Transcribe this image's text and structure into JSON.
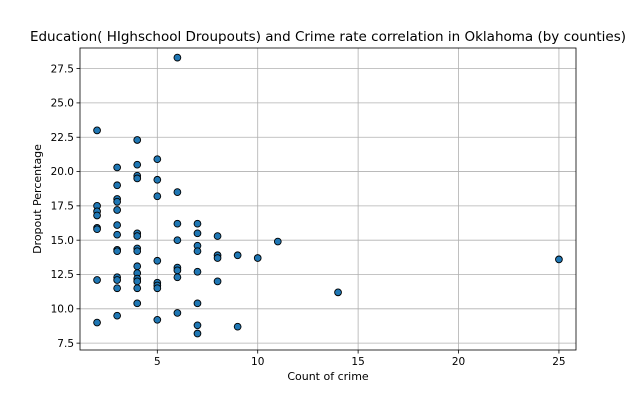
{
  "chart_data": {
    "type": "scatter",
    "title": "Education( HIghschool Droupouts) and Crime rate correlation in Oklahoma (by counties)",
    "xlabel": "Count of crime",
    "ylabel": "Dropout Percentage",
    "xlim": [
      1.15,
      25.85
    ],
    "ylim": [
      7.0,
      29.0
    ],
    "xticks": [
      5,
      10,
      15,
      20,
      25
    ],
    "yticks": [
      7.5,
      10.0,
      12.5,
      15.0,
      17.5,
      20.0,
      22.5,
      25.0,
      27.5
    ],
    "ytick_labels": [
      "7.5",
      "10.0",
      "12.5",
      "15.0",
      "17.5",
      "20.0",
      "22.5",
      "25.0",
      "27.5"
    ],
    "grid": true,
    "marker_color": "#1f77b4",
    "marker_edge_color": "#000000",
    "points": [
      {
        "x": 2,
        "y": 23.0
      },
      {
        "x": 2,
        "y": 17.5
      },
      {
        "x": 2,
        "y": 17.1
      },
      {
        "x": 2,
        "y": 16.8
      },
      {
        "x": 2,
        "y": 15.9
      },
      {
        "x": 2,
        "y": 15.8
      },
      {
        "x": 2,
        "y": 12.1
      },
      {
        "x": 2,
        "y": 9.0
      },
      {
        "x": 3,
        "y": 20.3
      },
      {
        "x": 3,
        "y": 19.0
      },
      {
        "x": 3,
        "y": 18.0
      },
      {
        "x": 3,
        "y": 17.8
      },
      {
        "x": 3,
        "y": 17.2
      },
      {
        "x": 3,
        "y": 16.1
      },
      {
        "x": 3,
        "y": 15.4
      },
      {
        "x": 3,
        "y": 14.3
      },
      {
        "x": 3,
        "y": 14.2
      },
      {
        "x": 3,
        "y": 12.3
      },
      {
        "x": 3,
        "y": 12.1
      },
      {
        "x": 3,
        "y": 11.5
      },
      {
        "x": 3,
        "y": 9.5
      },
      {
        "x": 4,
        "y": 22.3
      },
      {
        "x": 4,
        "y": 20.5
      },
      {
        "x": 4,
        "y": 19.7
      },
      {
        "x": 4,
        "y": 19.5
      },
      {
        "x": 4,
        "y": 15.5
      },
      {
        "x": 4,
        "y": 15.3
      },
      {
        "x": 4,
        "y": 14.4
      },
      {
        "x": 4,
        "y": 14.2
      },
      {
        "x": 4,
        "y": 13.1
      },
      {
        "x": 4,
        "y": 12.6
      },
      {
        "x": 4,
        "y": 12.2
      },
      {
        "x": 4,
        "y": 12.0
      },
      {
        "x": 4,
        "y": 11.5
      },
      {
        "x": 4,
        "y": 10.4
      },
      {
        "x": 5,
        "y": 20.9
      },
      {
        "x": 5,
        "y": 19.4
      },
      {
        "x": 5,
        "y": 18.2
      },
      {
        "x": 5,
        "y": 13.5
      },
      {
        "x": 5,
        "y": 11.9
      },
      {
        "x": 5,
        "y": 11.7
      },
      {
        "x": 5,
        "y": 11.5
      },
      {
        "x": 5,
        "y": 9.2
      },
      {
        "x": 6,
        "y": 28.3
      },
      {
        "x": 6,
        "y": 18.5
      },
      {
        "x": 6,
        "y": 16.2
      },
      {
        "x": 6,
        "y": 15.0
      },
      {
        "x": 6,
        "y": 13.0
      },
      {
        "x": 6,
        "y": 12.8
      },
      {
        "x": 6,
        "y": 12.3
      },
      {
        "x": 6,
        "y": 9.7
      },
      {
        "x": 7,
        "y": 16.2
      },
      {
        "x": 7,
        "y": 15.5
      },
      {
        "x": 7,
        "y": 14.6
      },
      {
        "x": 7,
        "y": 14.2
      },
      {
        "x": 7,
        "y": 12.7
      },
      {
        "x": 7,
        "y": 10.4
      },
      {
        "x": 7,
        "y": 8.8
      },
      {
        "x": 7,
        "y": 8.2
      },
      {
        "x": 8,
        "y": 15.3
      },
      {
        "x": 8,
        "y": 13.9
      },
      {
        "x": 8,
        "y": 13.7
      },
      {
        "x": 8,
        "y": 12.0
      },
      {
        "x": 9,
        "y": 13.9
      },
      {
        "x": 9,
        "y": 8.7
      },
      {
        "x": 10,
        "y": 13.7
      },
      {
        "x": 11,
        "y": 14.9
      },
      {
        "x": 14,
        "y": 11.2
      },
      {
        "x": 25,
        "y": 13.6
      }
    ]
  }
}
